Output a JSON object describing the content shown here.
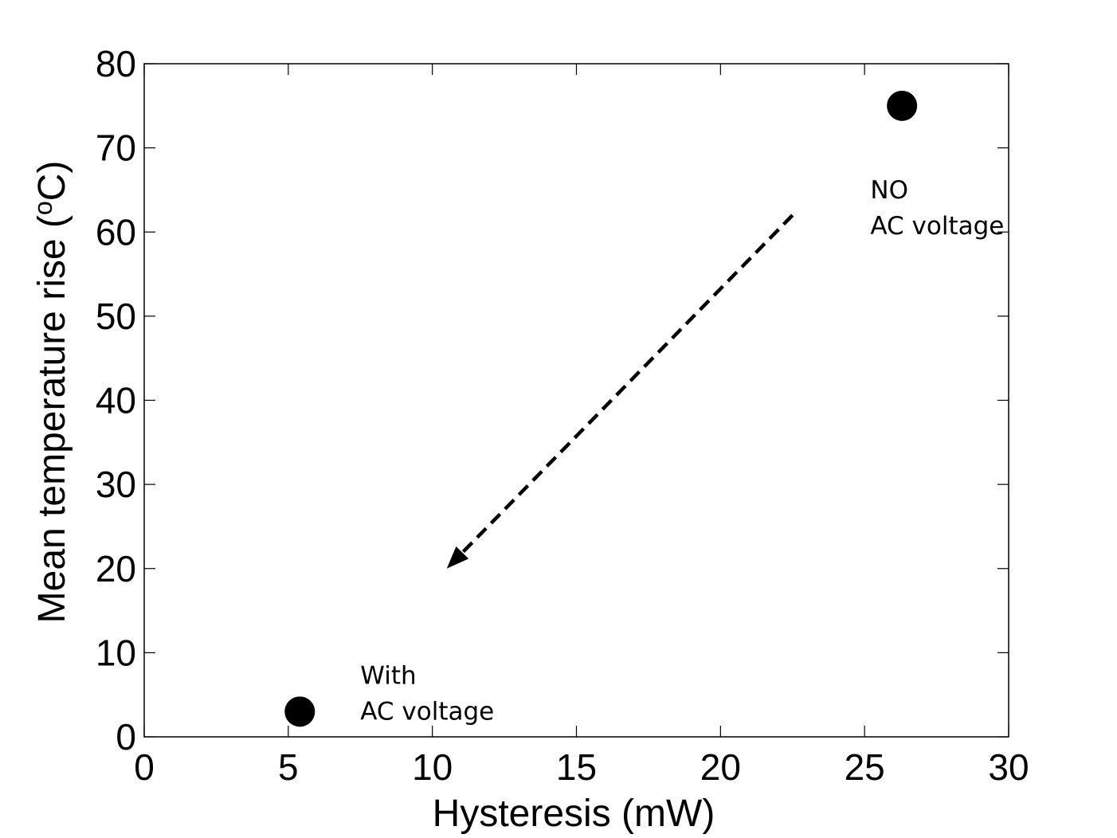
{
  "chart_data": {
    "type": "scatter",
    "title": "",
    "xlabel": "Hysteresis (mW)",
    "ylabel": "Mean temperature rise (°C)",
    "ylabel_prefix": "Mean temperature rise (",
    "ylabel_degree": "o",
    "ylabel_suffix": "C)",
    "xlim": [
      0,
      30
    ],
    "ylim": [
      0,
      80
    ],
    "xticks": [
      0,
      5,
      10,
      15,
      20,
      25,
      30
    ],
    "yticks": [
      0,
      10,
      20,
      30,
      40,
      50,
      60,
      70,
      80
    ],
    "grid": false,
    "series": [
      {
        "name": "measurements",
        "color": "#000000",
        "points": [
          {
            "x": 5.4,
            "y": 3
          },
          {
            "x": 26.3,
            "y": 75
          }
        ]
      }
    ],
    "annotations": [
      {
        "lines": [
          "NO",
          "AC voltage"
        ],
        "x": 25.2,
        "y": 64
      },
      {
        "lines": [
          "With",
          "AC voltage"
        ],
        "x": 7.5,
        "y": 6.3
      }
    ],
    "arrow": {
      "style": "dashed",
      "from": [
        22.5,
        62
      ],
      "to": [
        10.5,
        20
      ]
    }
  }
}
